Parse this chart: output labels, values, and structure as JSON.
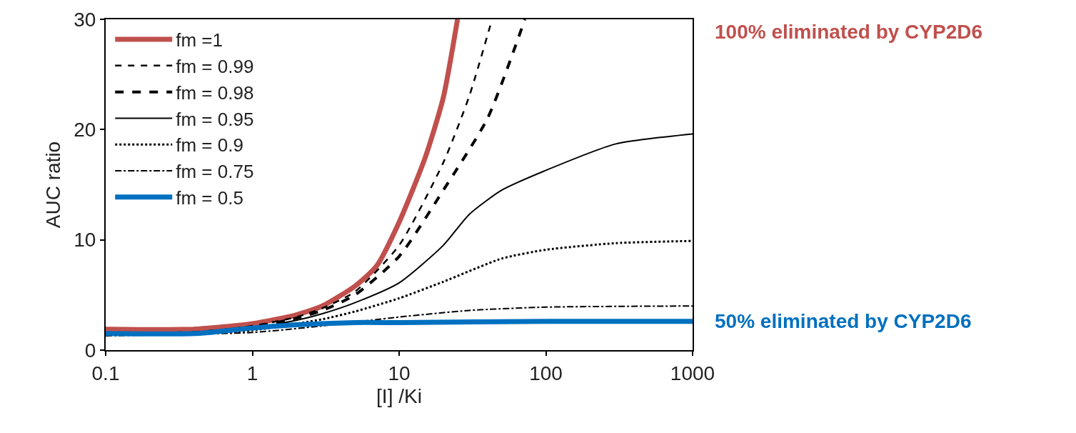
{
  "chart_data": {
    "type": "line",
    "xlabel": "[I] /Ki",
    "ylabel": "AUC ratio",
    "log": "x",
    "xlim": [
      0.1,
      1000
    ],
    "xticks": [
      0.1,
      1,
      10,
      100,
      1000
    ],
    "ylim": [
      0,
      30
    ],
    "yticks": [
      0,
      10,
      20,
      30
    ],
    "legend": "top left",
    "marker": "none",
    "series": [
      {
        "name": "fm =1",
        "color": "#c0504d",
        "line_style": "solid",
        "x": [
          0.1,
          0.4,
          1,
          2,
          3,
          5,
          7,
          10,
          15,
          20,
          25
        ],
        "values": [
          1.9,
          1.9,
          2.4,
          3.2,
          4.0,
          5.8,
          7.6,
          11.6,
          17.4,
          22.9,
          30
        ]
      },
      {
        "name": "fm = 0.99",
        "color": "#000000",
        "line_style": "dashed",
        "x": [
          0.1,
          0.4,
          1,
          2,
          3,
          5,
          10,
          20,
          30,
          43
        ],
        "values": [
          1.5,
          1.6,
          2.2,
          3.0,
          3.8,
          5.3,
          9.5,
          17,
          23,
          30
        ]
      },
      {
        "name": "fm = 0.98",
        "color": "#000000",
        "line_style": "dashed",
        "x": [
          0.1,
          0.4,
          1,
          2,
          3,
          5,
          10,
          20,
          40,
          72
        ],
        "values": [
          1.5,
          1.6,
          2.1,
          2.9,
          3.6,
          5.0,
          8.5,
          14.5,
          21,
          30
        ]
      },
      {
        "name": "fm = 0.95",
        "color": "#000000",
        "line_style": "solid",
        "x": [
          0.1,
          0.4,
          1,
          2,
          3,
          5,
          10,
          20,
          30,
          50,
          100,
          300,
          1000
        ],
        "values": [
          1.5,
          1.6,
          2.0,
          2.7,
          3.3,
          4.3,
          6.1,
          9.5,
          12.3,
          14.5,
          16.3,
          18.7,
          19.6
        ]
      },
      {
        "name": "fm = 0.9",
        "color": "#000000",
        "line_style": "dotted",
        "x": [
          0.1,
          0.4,
          1,
          3,
          5,
          10,
          20,
          50,
          100,
          300,
          1000
        ],
        "values": [
          1.4,
          1.5,
          1.8,
          2.8,
          3.5,
          4.7,
          6.2,
          8.3,
          9.1,
          9.7,
          9.9
        ]
      },
      {
        "name": "fm = 0.75",
        "color": "#000000",
        "line_style": "dashdot",
        "x": [
          0.1,
          1,
          3,
          10,
          30,
          100,
          1000
        ],
        "values": [
          1.3,
          1.6,
          2.2,
          3.0,
          3.6,
          3.9,
          4.0
        ]
      },
      {
        "name": "fm = 0.5",
        "color": "#0070c0",
        "line_style": "solid",
        "x": [
          0.1,
          0.4,
          1,
          2,
          5,
          10,
          100,
          1000
        ],
        "values": [
          1.5,
          1.5,
          2.0,
          2.3,
          2.5,
          2.5,
          2.6,
          2.6
        ]
      }
    ],
    "annotations": [
      "100% eliminated by CYP2D6",
      {
        "text": "50% eliminated by CYP2D6",
        "x": 1000,
        "y": 2.6
      }
    ]
  }
}
